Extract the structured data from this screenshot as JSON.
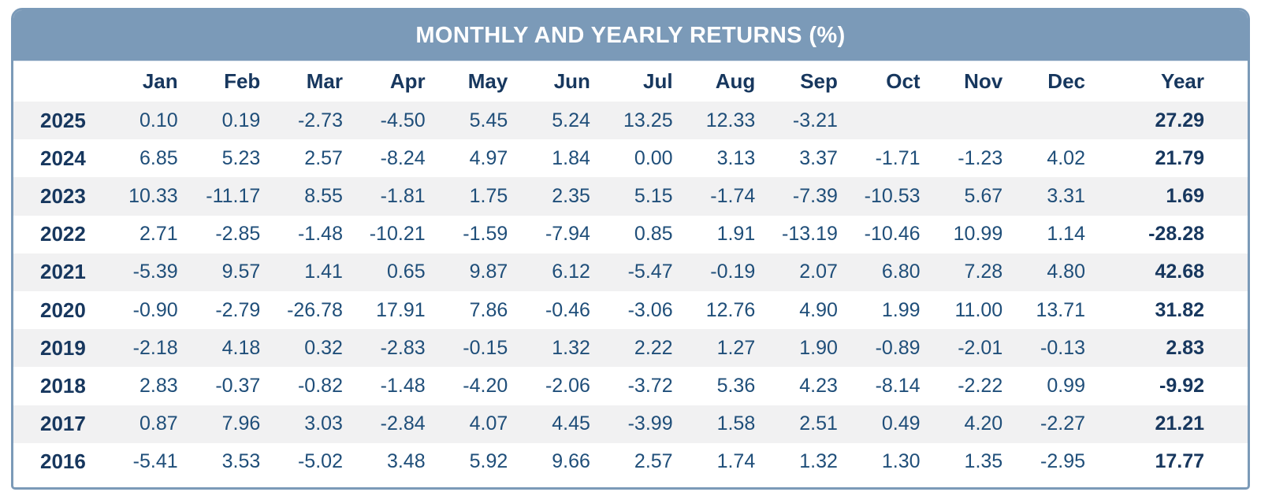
{
  "colors": {
    "header_bar_bg": "#7b9ab8",
    "card_border": "#7b9ab8",
    "title_text": "#ffffff",
    "header_navy": "#17375e",
    "value_blue": "#1f4e79",
    "row_stripe": "#f1f1f2",
    "page_bg": "#ffffff"
  },
  "chart_data": {
    "type": "table",
    "title": "MONTHLY AND YEARLY RETURNS (%)",
    "columns": [
      "Jan",
      "Feb",
      "Mar",
      "Apr",
      "May",
      "Jun",
      "Jul",
      "Aug",
      "Sep",
      "Oct",
      "Nov",
      "Dec",
      "Year"
    ],
    "rows": [
      {
        "year": "2025",
        "monthly": [
          0.1,
          0.19,
          -2.73,
          -4.5,
          5.45,
          5.24,
          13.25,
          12.33,
          -3.21,
          null,
          null,
          null
        ],
        "year_total": 27.29
      },
      {
        "year": "2024",
        "monthly": [
          6.85,
          5.23,
          2.57,
          -8.24,
          4.97,
          1.84,
          0.0,
          3.13,
          3.37,
          -1.71,
          -1.23,
          4.02
        ],
        "year_total": 21.79
      },
      {
        "year": "2023",
        "monthly": [
          10.33,
          -11.17,
          8.55,
          -1.81,
          1.75,
          2.35,
          5.15,
          -1.74,
          -7.39,
          -10.53,
          5.67,
          3.31
        ],
        "year_total": 1.69
      },
      {
        "year": "2022",
        "monthly": [
          2.71,
          -2.85,
          -1.48,
          -10.21,
          -1.59,
          -7.94,
          0.85,
          1.91,
          -13.19,
          -10.46,
          10.99,
          1.14
        ],
        "year_total": -28.28
      },
      {
        "year": "2021",
        "monthly": [
          -5.39,
          9.57,
          1.41,
          0.65,
          9.87,
          6.12,
          -5.47,
          -0.19,
          2.07,
          6.8,
          7.28,
          4.8
        ],
        "year_total": 42.68
      },
      {
        "year": "2020",
        "monthly": [
          -0.9,
          -2.79,
          -26.78,
          17.91,
          7.86,
          -0.46,
          -3.06,
          12.76,
          4.9,
          1.99,
          11.0,
          13.71
        ],
        "year_total": 31.82
      },
      {
        "year": "2019",
        "monthly": [
          -2.18,
          4.18,
          0.32,
          -2.83,
          -0.15,
          1.32,
          2.22,
          1.27,
          1.9,
          -0.89,
          -2.01,
          -0.13
        ],
        "year_total": 2.83
      },
      {
        "year": "2018",
        "monthly": [
          2.83,
          -0.37,
          -0.82,
          -1.48,
          -4.2,
          -2.06,
          -3.72,
          5.36,
          4.23,
          -8.14,
          -2.22,
          0.99
        ],
        "year_total": -9.92
      },
      {
        "year": "2017",
        "monthly": [
          0.87,
          7.96,
          3.03,
          -2.84,
          4.07,
          4.45,
          -3.99,
          1.58,
          2.51,
          0.49,
          4.2,
          -2.27
        ],
        "year_total": 21.21
      },
      {
        "year": "2016",
        "monthly": [
          -5.41,
          3.53,
          -5.02,
          3.48,
          5.92,
          9.66,
          2.57,
          1.74,
          1.32,
          1.3,
          1.35,
          -2.95
        ],
        "year_total": 17.77
      }
    ]
  }
}
